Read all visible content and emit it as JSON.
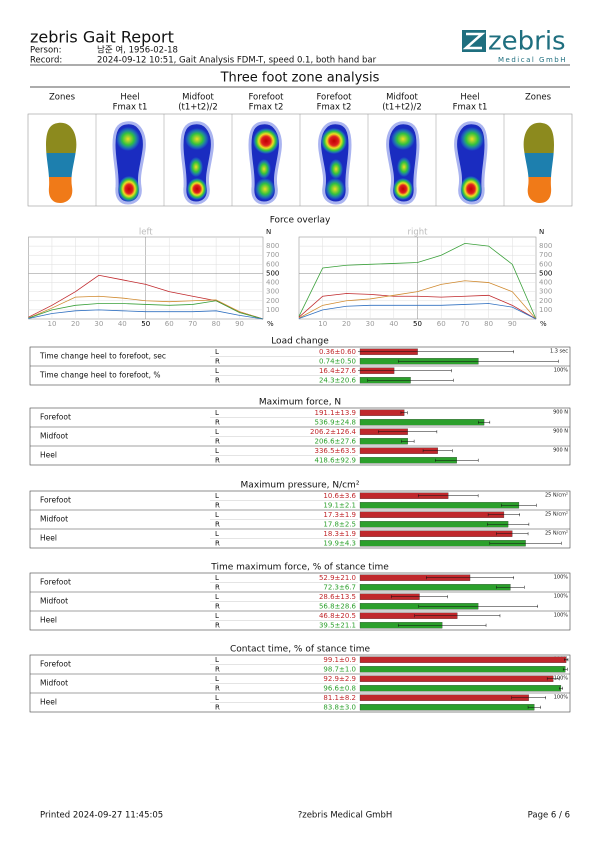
{
  "header": {
    "title": "zebris Gait Report",
    "person_label": "Person:",
    "person": "남준 여, 1956-02-18",
    "record_label": "Record:",
    "record": "2024-09-12 10:51, Gait Analysis FDM-T, speed 0.1, both hand bar",
    "logo": "zebris",
    "logo_sub": "Medical GmbH"
  },
  "zones": {
    "title": "Three foot zone analysis",
    "columns": [
      [
        "Zones"
      ],
      [
        "Heel",
        "Fmax t1"
      ],
      [
        "Midfoot",
        "(t1+t2)/2"
      ],
      [
        "Forefoot",
        "Fmax t2"
      ],
      [
        "Forefoot",
        "Fmax t2"
      ],
      [
        "Midfoot",
        "(t1+t2)/2"
      ],
      [
        "Heel",
        "Fmax t1"
      ],
      [
        "Zones"
      ]
    ]
  },
  "force_overlay": {
    "title": "Force overlay",
    "x_label": "%",
    "y_label": "N",
    "xlim": [
      0,
      100
    ],
    "ylim": [
      0,
      900
    ],
    "xticks": [
      10,
      20,
      30,
      40,
      50,
      60,
      70,
      80,
      90
    ],
    "yticks": [
      100,
      200,
      300,
      400,
      500,
      600,
      700,
      800
    ],
    "x": [
      0,
      10,
      20,
      30,
      40,
      50,
      60,
      70,
      80,
      90,
      100
    ],
    "panels": [
      {
        "label": "left",
        "series": [
          {
            "color": "#c0282c",
            "values": [
              20,
              150,
              300,
              480,
              430,
              380,
              300,
              250,
              200,
              80,
              0
            ]
          },
          {
            "color": "#d08a30",
            "values": [
              10,
              120,
              240,
              250,
              230,
              200,
              190,
              200,
              210,
              80,
              0
            ]
          },
          {
            "color": "#3aa03a",
            "values": [
              10,
              100,
              150,
              170,
              170,
              160,
              150,
              160,
              200,
              70,
              0
            ]
          },
          {
            "color": "#3070c0",
            "values": [
              5,
              60,
              90,
              100,
              90,
              80,
              80,
              80,
              90,
              40,
              0
            ]
          }
        ]
      },
      {
        "label": "right",
        "series": [
          {
            "color": "#3aa03a",
            "values": [
              30,
              560,
              590,
              600,
              610,
              620,
              700,
              830,
              800,
              600,
              0
            ]
          },
          {
            "color": "#c0282c",
            "values": [
              20,
              250,
              280,
              270,
              250,
              250,
              240,
              250,
              260,
              150,
              0
            ]
          },
          {
            "color": "#d08a30",
            "values": [
              10,
              150,
              200,
              220,
              260,
              300,
              380,
              420,
              400,
              300,
              0
            ]
          },
          {
            "color": "#3070c0",
            "values": [
              5,
              100,
              140,
              150,
              150,
              150,
              150,
              160,
              170,
              130,
              0
            ]
          }
        ]
      }
    ]
  },
  "tables": {
    "sides": [
      "L",
      "R"
    ],
    "sections": [
      {
        "title": "Load change",
        "rows": [
          {
            "name": "Time change heel to forefoot, sec",
            "scale": {
              "value": 1.3,
              "label": "1.3 sec"
            },
            "values": [
              {
                "label": "0.36±0.60",
                "mean": 0.36,
                "sd": 0.6
              },
              {
                "label": "0.74±0.50",
                "mean": 0.74,
                "sd": 0.5
              }
            ]
          },
          {
            "name": "Time change heel to forefoot, %",
            "scale": {
              "value": 100,
              "label": "100%"
            },
            "values": [
              {
                "label": "16.4±27.6",
                "mean": 16.4,
                "sd": 27.6
              },
              {
                "label": "24.3±20.6",
                "mean": 24.3,
                "sd": 20.6
              }
            ]
          }
        ]
      },
      {
        "title": "Maximum force, N",
        "scale": {
          "value": 900,
          "label": "900 N"
        },
        "rows": [
          {
            "name": "Forefoot",
            "values": [
              {
                "label": "191.1±13.9",
                "mean": 191.1,
                "sd": 13.9
              },
              {
                "label": "536.9±24.8",
                "mean": 536.9,
                "sd": 24.8
              }
            ]
          },
          {
            "name": "Midfoot",
            "values": [
              {
                "label": "206.2±126.4",
                "mean": 206.2,
                "sd": 126.4
              },
              {
                "label": "206.6±27.6",
                "mean": 206.6,
                "sd": 27.6
              }
            ]
          },
          {
            "name": "Heel",
            "values": [
              {
                "label": "336.5±63.5",
                "mean": 336.5,
                "sd": 63.5
              },
              {
                "label": "418.6±92.9",
                "mean": 418.6,
                "sd": 92.9
              }
            ]
          }
        ]
      },
      {
        "title": "Maximum pressure, N/cm²",
        "scale": {
          "value": 25,
          "label": "25 N/cm²"
        },
        "rows": [
          {
            "name": "Forefoot",
            "values": [
              {
                "label": "10.6±3.6",
                "mean": 10.6,
                "sd": 3.6
              },
              {
                "label": "19.1±2.1",
                "mean": 19.1,
                "sd": 2.1
              }
            ]
          },
          {
            "name": "Midfoot",
            "values": [
              {
                "label": "17.3±1.9",
                "mean": 17.3,
                "sd": 1.9
              },
              {
                "label": "17.8±2.5",
                "mean": 17.8,
                "sd": 2.5
              }
            ]
          },
          {
            "name": "Heel",
            "values": [
              {
                "label": "18.3±1.9",
                "mean": 18.3,
                "sd": 1.9
              },
              {
                "label": "19.9±4.3",
                "mean": 19.9,
                "sd": 4.3
              }
            ]
          }
        ]
      },
      {
        "title": "Time maximum force,  % of stance time",
        "scale": {
          "value": 100,
          "label": "100%"
        },
        "rows": [
          {
            "name": "Forefoot",
            "values": [
              {
                "label": "52.9±21.0",
                "mean": 52.9,
                "sd": 21.0
              },
              {
                "label": "72.3±6.7",
                "mean": 72.3,
                "sd": 6.7
              }
            ]
          },
          {
            "name": "Midfoot",
            "values": [
              {
                "label": "28.6±13.5",
                "mean": 28.6,
                "sd": 13.5
              },
              {
                "label": "56.8±28.6",
                "mean": 56.8,
                "sd": 28.6
              }
            ]
          },
          {
            "name": "Heel",
            "values": [
              {
                "label": "46.8±20.5",
                "mean": 46.8,
                "sd": 20.5
              },
              {
                "label": "39.5±21.1",
                "mean": 39.5,
                "sd": 21.1
              }
            ]
          }
        ]
      },
      {
        "title": "Contact time,  % of stance time",
        "scale": {
          "value": 100,
          "label": "100%"
        },
        "rows": [
          {
            "name": "Forefoot",
            "values": [
              {
                "label": "99.1±0.9",
                "mean": 99.1,
                "sd": 0.9
              },
              {
                "label": "98.7±1.0",
                "mean": 98.7,
                "sd": 1.0
              }
            ]
          },
          {
            "name": "Midfoot",
            "values": [
              {
                "label": "92.9±2.9",
                "mean": 92.9,
                "sd": 2.9
              },
              {
                "label": "96.6±0.8",
                "mean": 96.6,
                "sd": 0.8
              }
            ]
          },
          {
            "name": "Heel",
            "values": [
              {
                "label": "81.1±8.2",
                "mean": 81.1,
                "sd": 8.2
              },
              {
                "label": "83.8±3.0",
                "mean": 83.8,
                "sd": 3.0
              }
            ]
          }
        ]
      }
    ]
  },
  "footer": {
    "printed": "Printed  2024-09-27 11:45:05",
    "company": "?zebris Medical GmbH",
    "page": "Page 6 / 6"
  }
}
